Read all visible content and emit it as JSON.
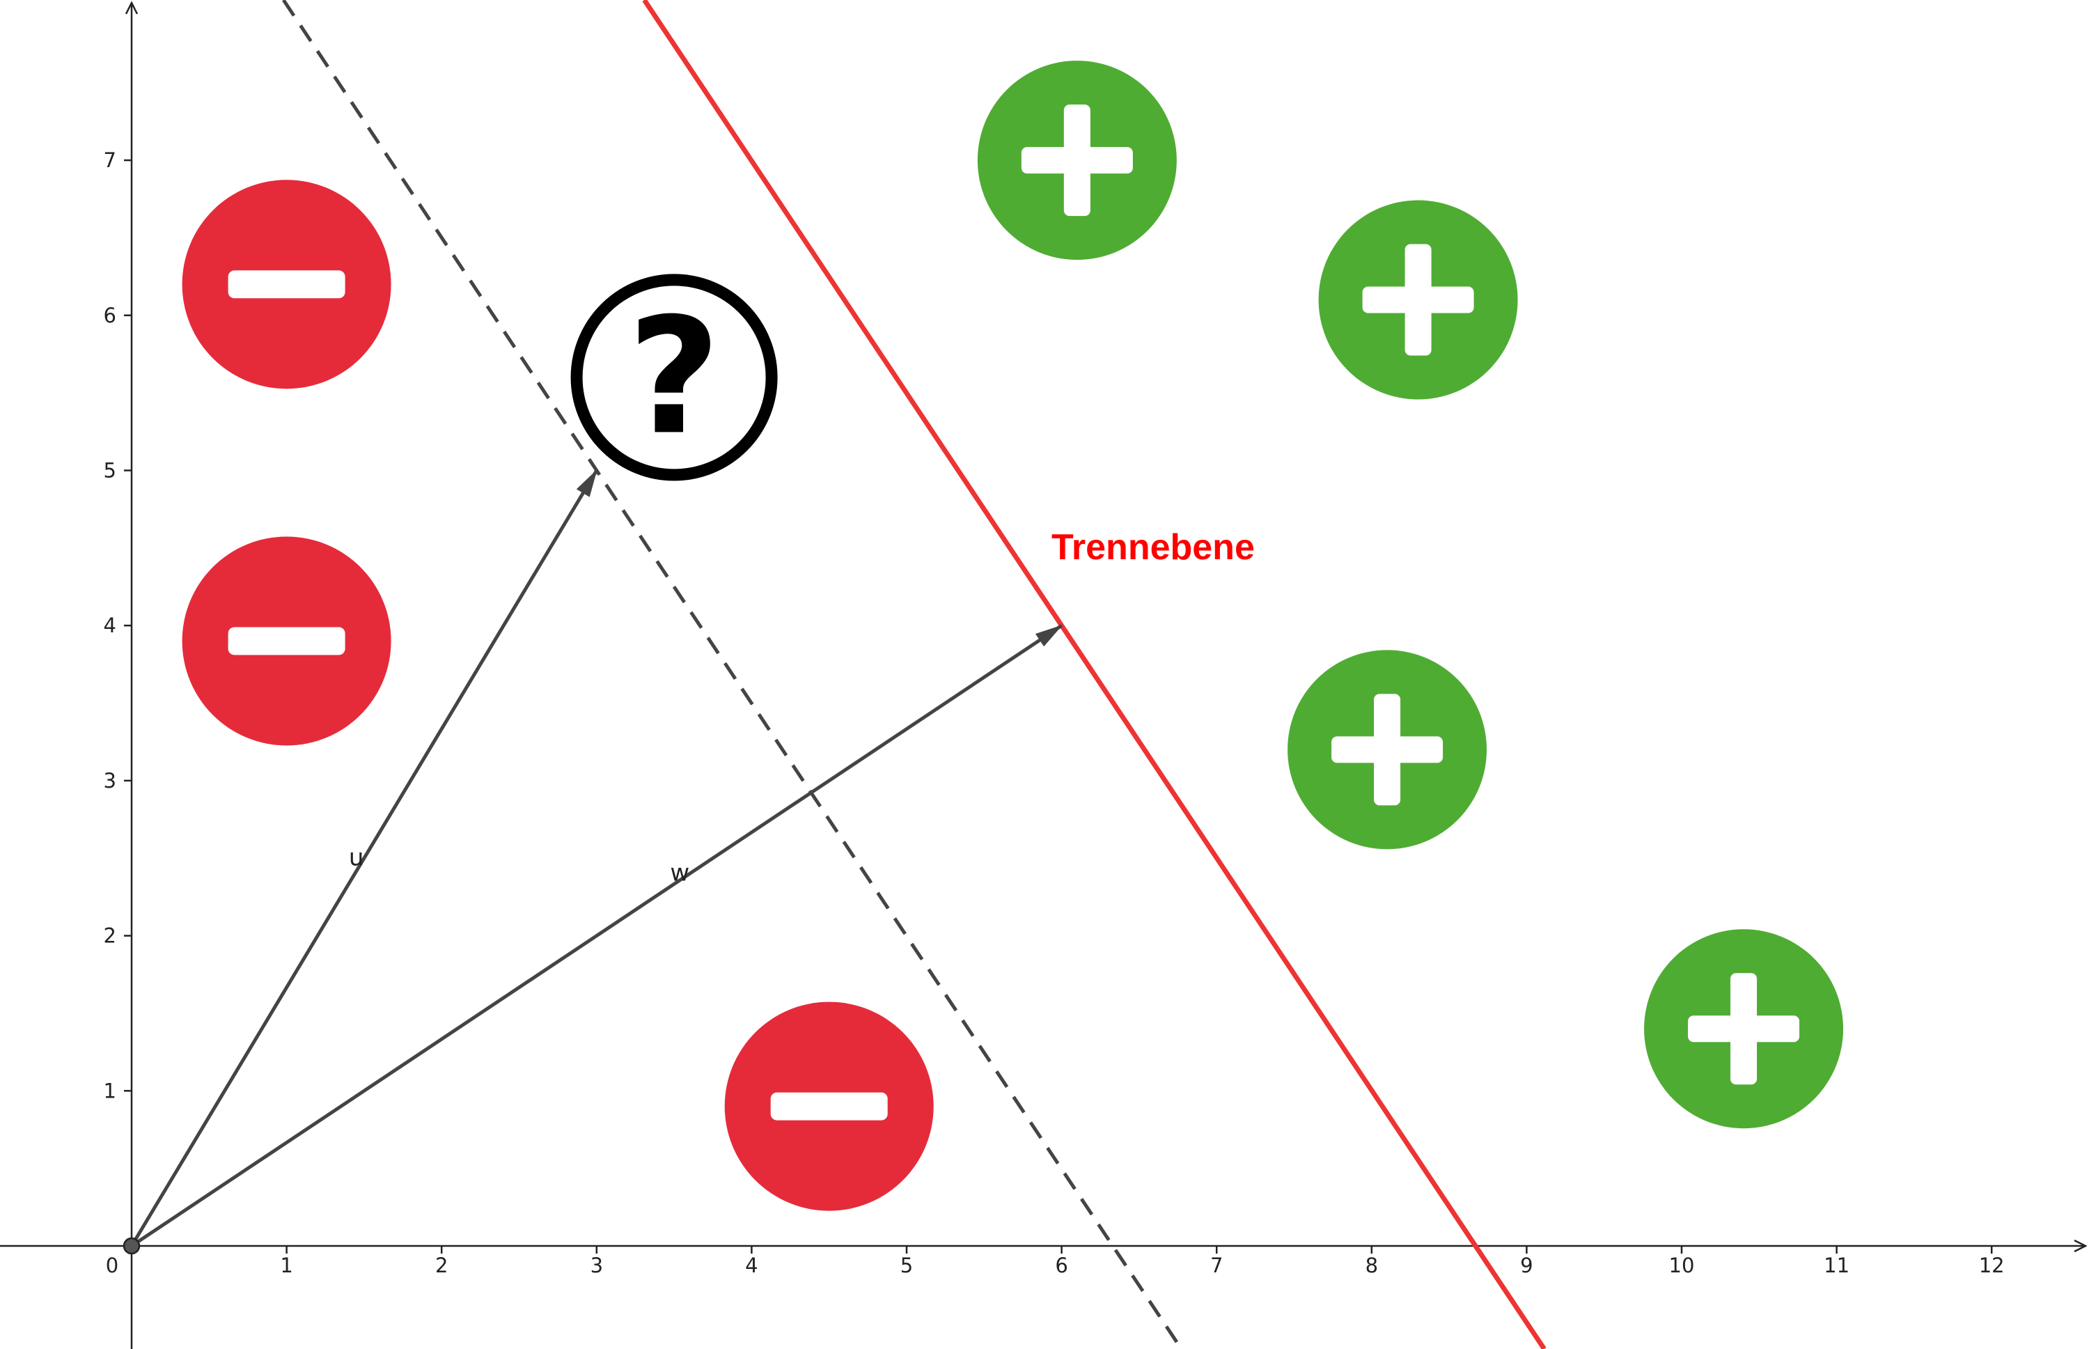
{
  "diagram": {
    "x_axis": {
      "range": [
        0,
        12
      ],
      "ticks": [
        "0",
        "1",
        "2",
        "3",
        "4",
        "5",
        "6",
        "7",
        "8",
        "9",
        "10",
        "11",
        "12"
      ]
    },
    "y_axis": {
      "range": [
        0,
        7
      ],
      "ticks": [
        "1",
        "2",
        "3",
        "4",
        "5",
        "6",
        "7"
      ]
    },
    "origin_label": "0",
    "hyperplane": {
      "label": "Trennebene",
      "color": "#ee3333",
      "label_color": "#ff0000",
      "points": [
        [
          6,
          4
        ],
        [
          8.67,
          0
        ]
      ]
    },
    "dashed_line": {
      "color": "#444444",
      "points": [
        [
          3,
          5
        ],
        [
          6.33,
          0
        ]
      ]
    },
    "vectors": [
      {
        "label": "u",
        "to": [
          3,
          5
        ]
      },
      {
        "label": "w",
        "to": [
          6,
          4
        ]
      }
    ],
    "negative_points": [
      [
        1,
        6.2
      ],
      [
        1,
        3.9
      ],
      [
        4.5,
        0.9
      ]
    ],
    "positive_points": [
      [
        6.1,
        7.0
      ],
      [
        8.3,
        6.1
      ],
      [
        8.1,
        3.2
      ],
      [
        10.4,
        1.4
      ]
    ],
    "unknown_point": {
      "at": [
        3.5,
        5.6
      ],
      "symbol": "?"
    },
    "colors": {
      "negative": "#e52b3a",
      "positive": "#4fac33",
      "axis": "#222222",
      "vector": "#444444"
    }
  }
}
